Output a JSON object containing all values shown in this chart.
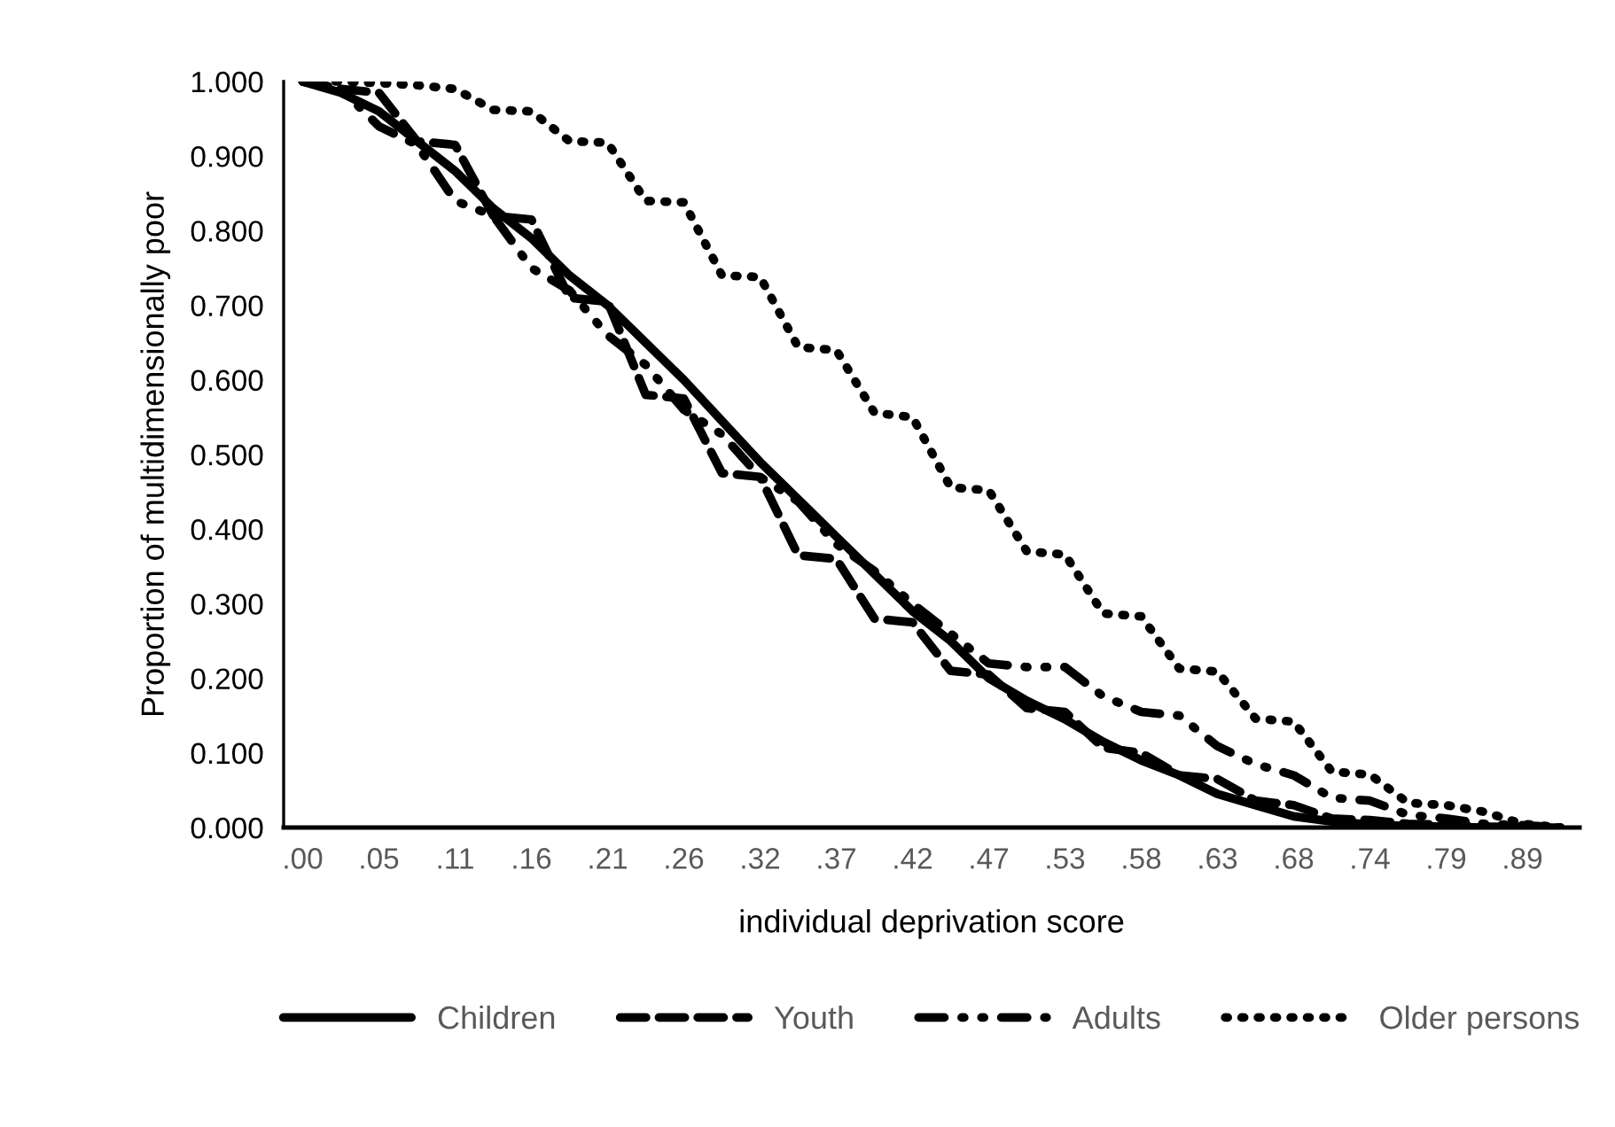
{
  "chart_data": {
    "type": "line",
    "xlabel": "individual deprivation score",
    "ylabel": "Proportion of multidimensionally poor",
    "categories": [
      ".00",
      null,
      ".05",
      null,
      ".11",
      null,
      ".16",
      null,
      ".21",
      null,
      ".26",
      null,
      ".32",
      null,
      ".37",
      null,
      ".42",
      null,
      ".47",
      null,
      ".53",
      null,
      ".58",
      null,
      ".63",
      null,
      ".68",
      null,
      ".74",
      null,
      ".79",
      null,
      ".89",
      null
    ],
    "series": [
      {
        "name": "Children",
        "color": "#000000",
        "line_style": "solid",
        "values": [
          1.0,
          0.985,
          0.96,
          0.92,
          0.88,
          0.83,
          0.79,
          0.74,
          0.7,
          0.65,
          0.6,
          0.545,
          0.49,
          0.44,
          0.39,
          0.34,
          0.29,
          0.25,
          0.2,
          0.17,
          0.145,
          0.115,
          0.09,
          0.07,
          0.045,
          0.03,
          0.015,
          0.008,
          0.004,
          0.002,
          0.001,
          0.0,
          0.0,
          0.0
        ]
      },
      {
        "name": "Youth",
        "color": "#000000",
        "line_style": "dashed",
        "values": [
          1.0,
          0.99,
          0.985,
          0.92,
          0.915,
          0.82,
          0.815,
          0.71,
          0.705,
          0.58,
          0.575,
          0.475,
          0.47,
          0.365,
          0.36,
          0.28,
          0.275,
          0.21,
          0.205,
          0.16,
          0.155,
          0.107,
          0.1,
          0.07,
          0.065,
          0.036,
          0.03,
          0.012,
          0.01,
          0.005,
          0.004,
          0.001,
          0.001,
          0.0
        ]
      },
      {
        "name": "Adults",
        "color": "#000000",
        "line_style": "dashdot",
        "values": [
          1.0,
          0.99,
          0.94,
          0.915,
          0.84,
          0.82,
          0.75,
          0.72,
          0.66,
          0.62,
          0.56,
          0.527,
          0.47,
          0.437,
          0.38,
          0.344,
          0.3,
          0.26,
          0.22,
          0.215,
          0.215,
          0.176,
          0.155,
          0.15,
          0.109,
          0.085,
          0.07,
          0.04,
          0.036,
          0.017,
          0.012,
          0.005,
          0.003,
          0.0
        ]
      },
      {
        "name": "Older persons",
        "color": "#000000",
        "line_style": "dotted",
        "values": [
          1.0,
          1.0,
          0.998,
          0.995,
          0.99,
          0.962,
          0.96,
          0.92,
          0.918,
          0.84,
          0.838,
          0.74,
          0.738,
          0.644,
          0.64,
          0.556,
          0.55,
          0.456,
          0.452,
          0.37,
          0.366,
          0.287,
          0.283,
          0.213,
          0.209,
          0.146,
          0.142,
          0.075,
          0.071,
          0.033,
          0.03,
          0.021,
          0.005,
          0.0
        ]
      }
    ],
    "ylim": [
      0,
      1
    ],
    "yticks": [
      {
        "value": 0,
        "label": "0.000"
      },
      {
        "value": 0.1,
        "label": "0.100"
      },
      {
        "value": 0.2,
        "label": "0.200"
      },
      {
        "value": 0.3,
        "label": "0.300"
      },
      {
        "value": 0.4,
        "label": "0.400"
      },
      {
        "value": 0.5,
        "label": "0.500"
      },
      {
        "value": 0.6,
        "label": "0.600"
      },
      {
        "value": 0.7,
        "label": "0.700"
      },
      {
        "value": 0.8,
        "label": "0.800"
      },
      {
        "value": 0.9,
        "label": "0.900"
      },
      {
        "value": 1.0,
        "label": "1.000"
      }
    ],
    "grid": false,
    "legend": "bottom",
    "marker": "none"
  }
}
